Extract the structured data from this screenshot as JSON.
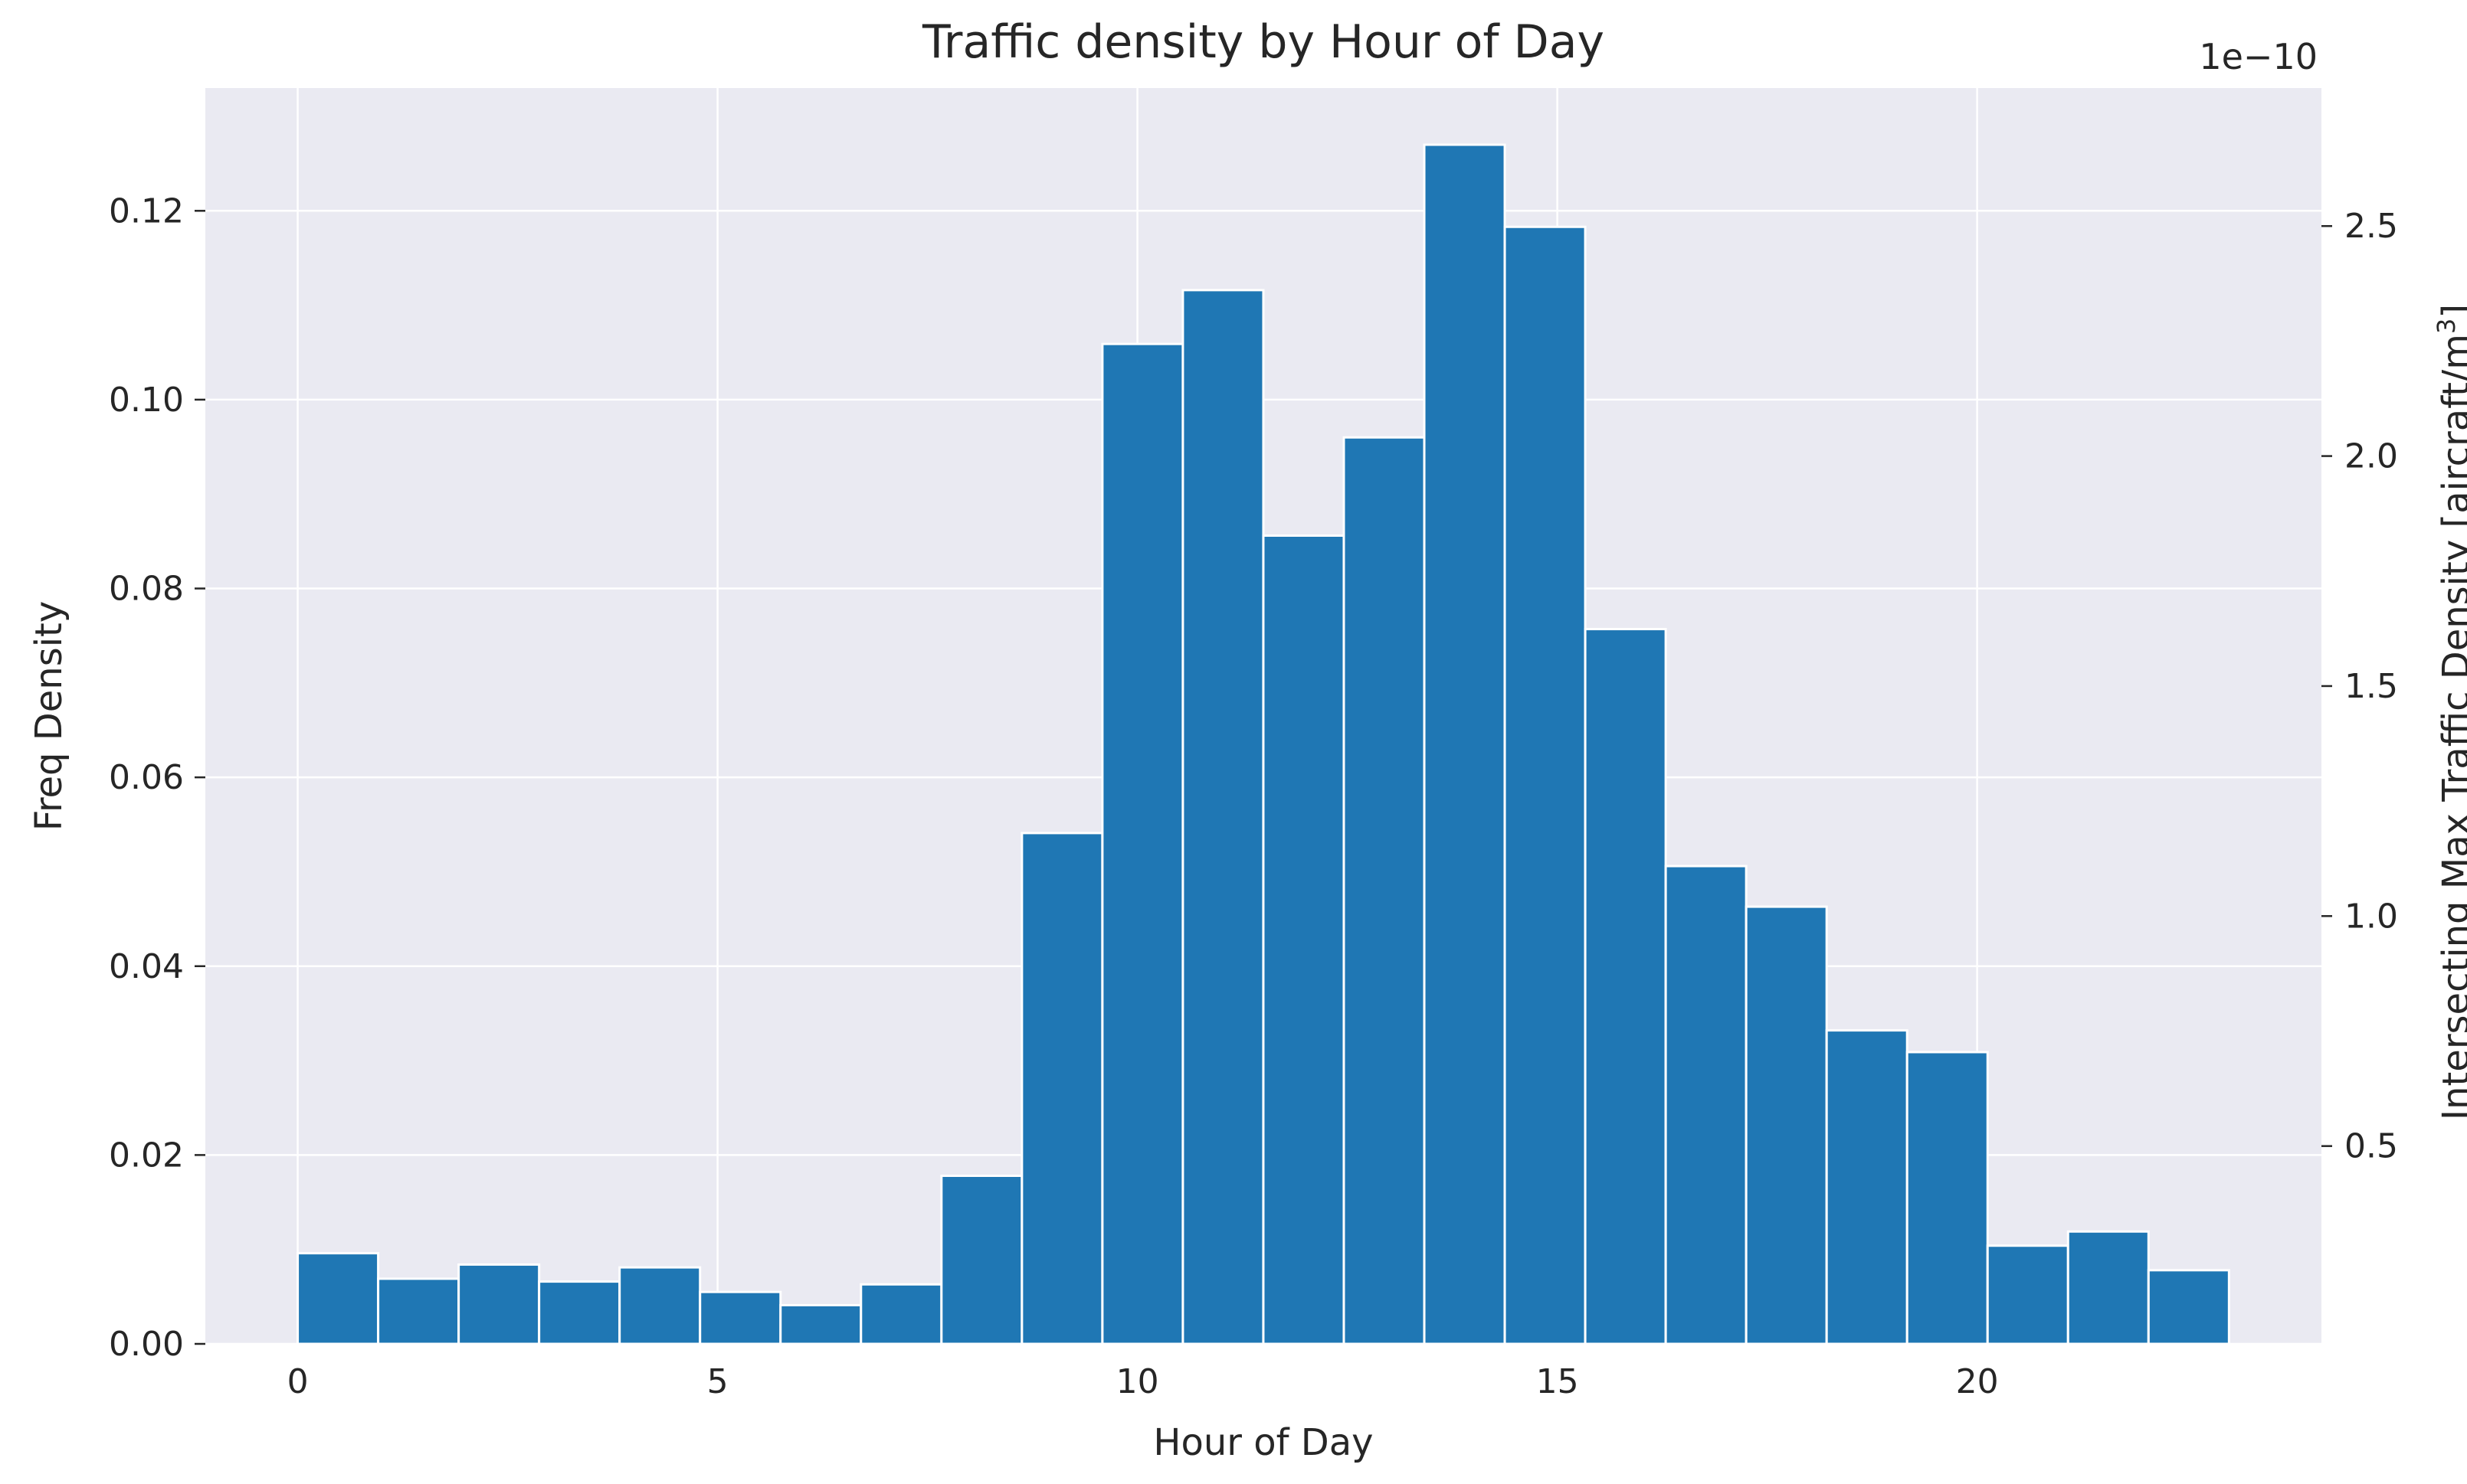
{
  "chart_data": {
    "type": "bar",
    "title": "Traffic density by Hour of Day",
    "xlabel": "Hour of Day",
    "ylabel": "Freq Density",
    "ylabel_right": "Intersecting Max Traffic Density [aircraft/m3]",
    "ylabel_right_parts": [
      "Intersecting Max Traffic Density [aircraft/m",
      "3",
      "]"
    ],
    "right_axis_offset": "1e−10",
    "grid": true,
    "xlim": [
      -1.1,
      24.1
    ],
    "ylim": [
      0,
      0.133
    ],
    "ylim_right": [
      0.07,
      2.8
    ],
    "x_ticks": [
      0,
      5,
      10,
      15,
      20
    ],
    "y_ticks": [
      0.0,
      0.02,
      0.04,
      0.06,
      0.08,
      0.1,
      0.12
    ],
    "y_tick_labels": [
      "0.00",
      "0.02",
      "0.04",
      "0.06",
      "0.08",
      "0.10",
      "0.12"
    ],
    "y_right_ticks": [
      0.5,
      1.0,
      1.5,
      2.0,
      2.5
    ],
    "y_right_tick_labels": [
      "0.5",
      "1.0",
      "1.5",
      "2.0",
      "2.5"
    ],
    "bins": {
      "start": 0,
      "width": 0.9583,
      "values": [
        0.0096,
        0.0069,
        0.0084,
        0.0066,
        0.0081,
        0.0055,
        0.0041,
        0.0063,
        0.0178,
        0.0541,
        0.1059,
        0.1116,
        0.0856,
        0.096,
        0.127,
        0.1183,
        0.0757,
        0.0506,
        0.0463,
        0.0332,
        0.0309,
        0.0104,
        0.0119,
        0.0078
      ]
    },
    "colors": {
      "bar": "#1f77b4",
      "background": "#eaeaf2",
      "grid": "#ffffff",
      "text": "#262626"
    }
  }
}
